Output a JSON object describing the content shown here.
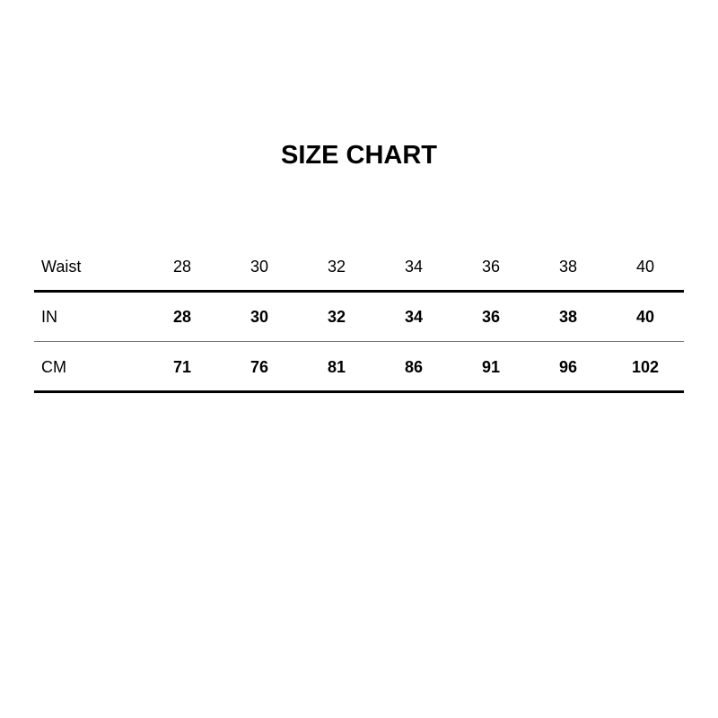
{
  "title": "SIZE CHART",
  "table": {
    "header": {
      "label": "Waist",
      "values": [
        "28",
        "30",
        "32",
        "34",
        "36",
        "38",
        "40"
      ]
    },
    "rows": [
      {
        "label": "IN",
        "values": [
          "28",
          "30",
          "32",
          "34",
          "36",
          "38",
          "40"
        ]
      },
      {
        "label": "CM",
        "values": [
          "71",
          "76",
          "81",
          "86",
          "91",
          "96",
          "102"
        ]
      }
    ]
  }
}
